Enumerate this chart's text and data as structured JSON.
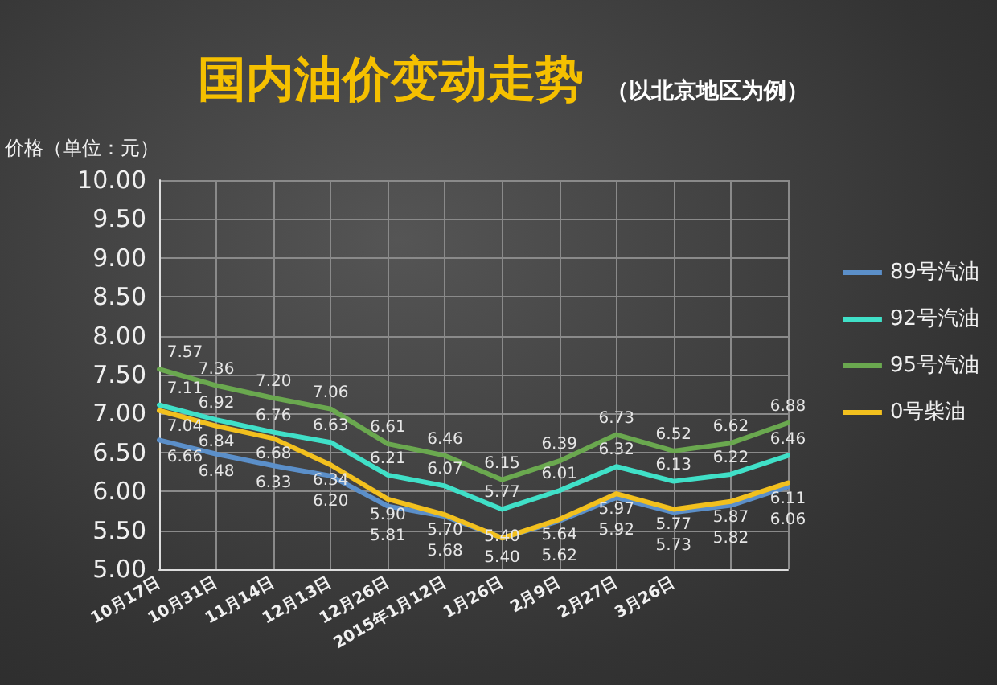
{
  "chart_data": {
    "type": "line",
    "title": "国内油价变动走势",
    "subtitle": "（以北京地区为例）",
    "ylabel": "价格（单位：元）",
    "categories": [
      "10月17日",
      "10月31日",
      "11月14日",
      "12月13日",
      "12月26日",
      "2015年1月12日",
      "1月26日",
      "2月9日",
      "2月27日",
      "3月26日",
      null,
      null
    ],
    "series": [
      {
        "name": "89号汽油",
        "color": "#5b8fc9",
        "values": [
          6.66,
          6.48,
          6.33,
          6.2,
          5.81,
          5.68,
          5.4,
          5.62,
          5.92,
          5.73,
          5.82,
          6.06
        ],
        "value_labels": [
          "6.66",
          "6.48",
          "6.33",
          "6.20",
          "5.81",
          "5.68",
          "5.40",
          "5.62",
          "5.92",
          "5.73",
          "5.82",
          "6.06"
        ]
      },
      {
        "name": "92号汽油",
        "color": "#40e0c8",
        "values": [
          7.11,
          6.92,
          6.76,
          6.63,
          6.21,
          6.07,
          5.77,
          6.01,
          6.32,
          6.13,
          6.22,
          6.46
        ],
        "value_labels": [
          "7.11",
          "6.92",
          "6.76",
          "6.63",
          "6.21",
          "6.07",
          "5.77",
          "6.01",
          "6.32",
          "6.13",
          "6.22",
          "6.46"
        ]
      },
      {
        "name": "95号汽油",
        "color": "#6aa84f",
        "values": [
          7.57,
          7.36,
          7.2,
          7.06,
          6.61,
          6.46,
          6.15,
          6.39,
          6.73,
          6.52,
          6.62,
          6.88
        ],
        "value_labels": [
          "7.57",
          "7.36",
          "7.20",
          "7.06",
          "6.61",
          "6.46",
          "6.15",
          "6.39",
          "6.73",
          "6.52",
          "6.62",
          "6.88"
        ]
      },
      {
        "name": "0号柴油",
        "color": "#f2c01e",
        "values": [
          7.04,
          6.84,
          6.68,
          6.34,
          5.9,
          5.7,
          5.4,
          5.64,
          5.97,
          5.77,
          5.87,
          6.11
        ],
        "value_labels": [
          "7.04",
          "6.84",
          "6.68",
          "6.34",
          "5.90",
          "5.70",
          "5.40",
          "5.64",
          "5.97",
          "5.77",
          "5.87",
          "6.11"
        ]
      }
    ],
    "ylim": [
      5,
      10
    ],
    "yticks": [
      {
        "value": 5,
        "label": "5.00"
      },
      {
        "value": 5.5,
        "label": "5.50"
      },
      {
        "value": 6,
        "label": "6.00"
      },
      {
        "value": 6.5,
        "label": "6.50"
      },
      {
        "value": 7,
        "label": "7.00"
      },
      {
        "value": 7.5,
        "label": "7.50"
      },
      {
        "value": 8,
        "label": "8.00"
      },
      {
        "value": 8.5,
        "label": "8.50"
      },
      {
        "value": 9,
        "label": "9.00"
      },
      {
        "value": 9.5,
        "label": "9.50"
      },
      {
        "value": 10,
        "label": "10.00"
      }
    ],
    "grid": true,
    "legend": "right",
    "marker": "none",
    "line_style": "solid"
  }
}
